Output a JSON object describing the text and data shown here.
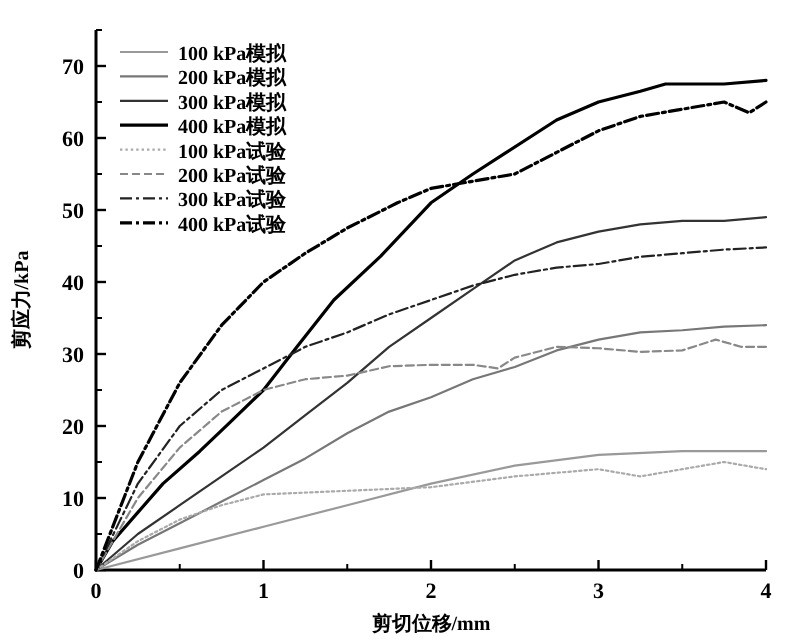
{
  "chart_data": {
    "type": "line",
    "xlabel": "剪切位移/mm",
    "ylabel": "剪应力/kPa",
    "xlim": [
      0,
      4
    ],
    "ylim": [
      0,
      75
    ],
    "xticks": [
      0,
      1,
      2,
      3,
      4
    ],
    "yticks": [
      0,
      10,
      20,
      30,
      40,
      50,
      60,
      70
    ],
    "legend": "top left",
    "grid": false,
    "marker": "none",
    "series": [
      {
        "name": "100 kPa模拟",
        "color": "#999999",
        "line_style": "solid",
        "x": [
          0,
          0.5,
          1,
          1.5,
          2,
          2.5,
          3,
          3.5,
          4
        ],
        "values": [
          0,
          3,
          6,
          9,
          12,
          14.5,
          16,
          16.5,
          16.5
        ]
      },
      {
        "name": "200 kPa模拟",
        "color": "#777777",
        "line_style": "solid",
        "x": [
          0,
          0.25,
          0.5,
          0.75,
          1,
          1.25,
          1.5,
          1.75,
          2,
          2.25,
          2.5,
          2.75,
          3,
          3.25,
          3.5,
          3.75,
          4
        ],
        "values": [
          0,
          3.5,
          6.5,
          9.5,
          12.5,
          15.5,
          19,
          22,
          24,
          26.5,
          28.2,
          30.5,
          32,
          33,
          33.3,
          33.8,
          34
        ]
      },
      {
        "name": "300 kPa模拟",
        "color": "#333333",
        "line_style": "solid",
        "x": [
          0,
          0.25,
          0.5,
          0.75,
          1,
          1.25,
          1.5,
          1.75,
          2,
          2.25,
          2.5,
          2.75,
          3,
          3.25,
          3.5,
          3.75,
          4
        ],
        "values": [
          0,
          5,
          9,
          13,
          17,
          21.5,
          26,
          31,
          35,
          39,
          43,
          45.5,
          47,
          48,
          48.5,
          48.5,
          49
        ]
      },
      {
        "name": "400 kPa模拟",
        "color": "#000000",
        "line_style": "solid",
        "x": [
          0,
          0.1,
          0.25,
          0.4,
          0.62,
          0.8,
          1,
          1.2,
          1.42,
          1.7,
          2,
          2.25,
          2.45,
          2.75,
          3,
          3.25,
          3.4,
          3.75,
          4
        ],
        "values": [
          0,
          4,
          8,
          12,
          16.5,
          20.5,
          25,
          31,
          37.5,
          43.6,
          51,
          55,
          58,
          62.5,
          65,
          66.5,
          67.5,
          67.5,
          68
        ]
      },
      {
        "name": "100 kPa试验",
        "color": "#aaaaaa",
        "line_style": "dotted",
        "x": [
          0,
          0.25,
          0.5,
          0.75,
          1,
          1.5,
          2,
          2.5,
          3,
          3.25,
          3.5,
          3.75,
          4
        ],
        "values": [
          0,
          4,
          7,
          9,
          10.5,
          11,
          11.5,
          13,
          14,
          13,
          14,
          15,
          14
        ]
      },
      {
        "name": "200 kPa试验",
        "color": "#888888",
        "line_style": "dashed",
        "x": [
          0,
          0.25,
          0.5,
          0.75,
          1,
          1.25,
          1.5,
          1.75,
          2,
          2.25,
          2.4,
          2.5,
          2.75,
          3,
          3.25,
          3.5,
          3.7,
          3.85,
          4
        ],
        "values": [
          0,
          10,
          17,
          22,
          25,
          26.5,
          27,
          28.3,
          28.5,
          28.5,
          28,
          29.5,
          31,
          30.8,
          30.3,
          30.5,
          32,
          31,
          31
        ]
      },
      {
        "name": "300 kPa试验",
        "color": "#222222",
        "line_style": "dashdot",
        "x": [
          0,
          0.25,
          0.5,
          0.75,
          1,
          1.25,
          1.5,
          1.75,
          2,
          2.25,
          2.5,
          2.75,
          3,
          3.25,
          3.5,
          3.75,
          4
        ],
        "values": [
          0,
          12,
          20,
          25,
          28,
          31,
          33,
          35.5,
          37.5,
          39.5,
          41,
          42,
          42.5,
          43.5,
          44,
          44.5,
          44.8
        ]
      },
      {
        "name": "400 kPa试验",
        "color": "#000000",
        "line_style": "dashdot",
        "x": [
          0,
          0.25,
          0.5,
          0.75,
          1,
          1.25,
          1.5,
          1.8,
          2,
          2.25,
          2.5,
          2.75,
          3,
          3.25,
          3.5,
          3.75,
          3.9,
          4
        ],
        "values": [
          0,
          15,
          26,
          34,
          40,
          44,
          47.5,
          51,
          53,
          54,
          55,
          58,
          61,
          63,
          64,
          65,
          63.5,
          65
        ]
      }
    ]
  }
}
